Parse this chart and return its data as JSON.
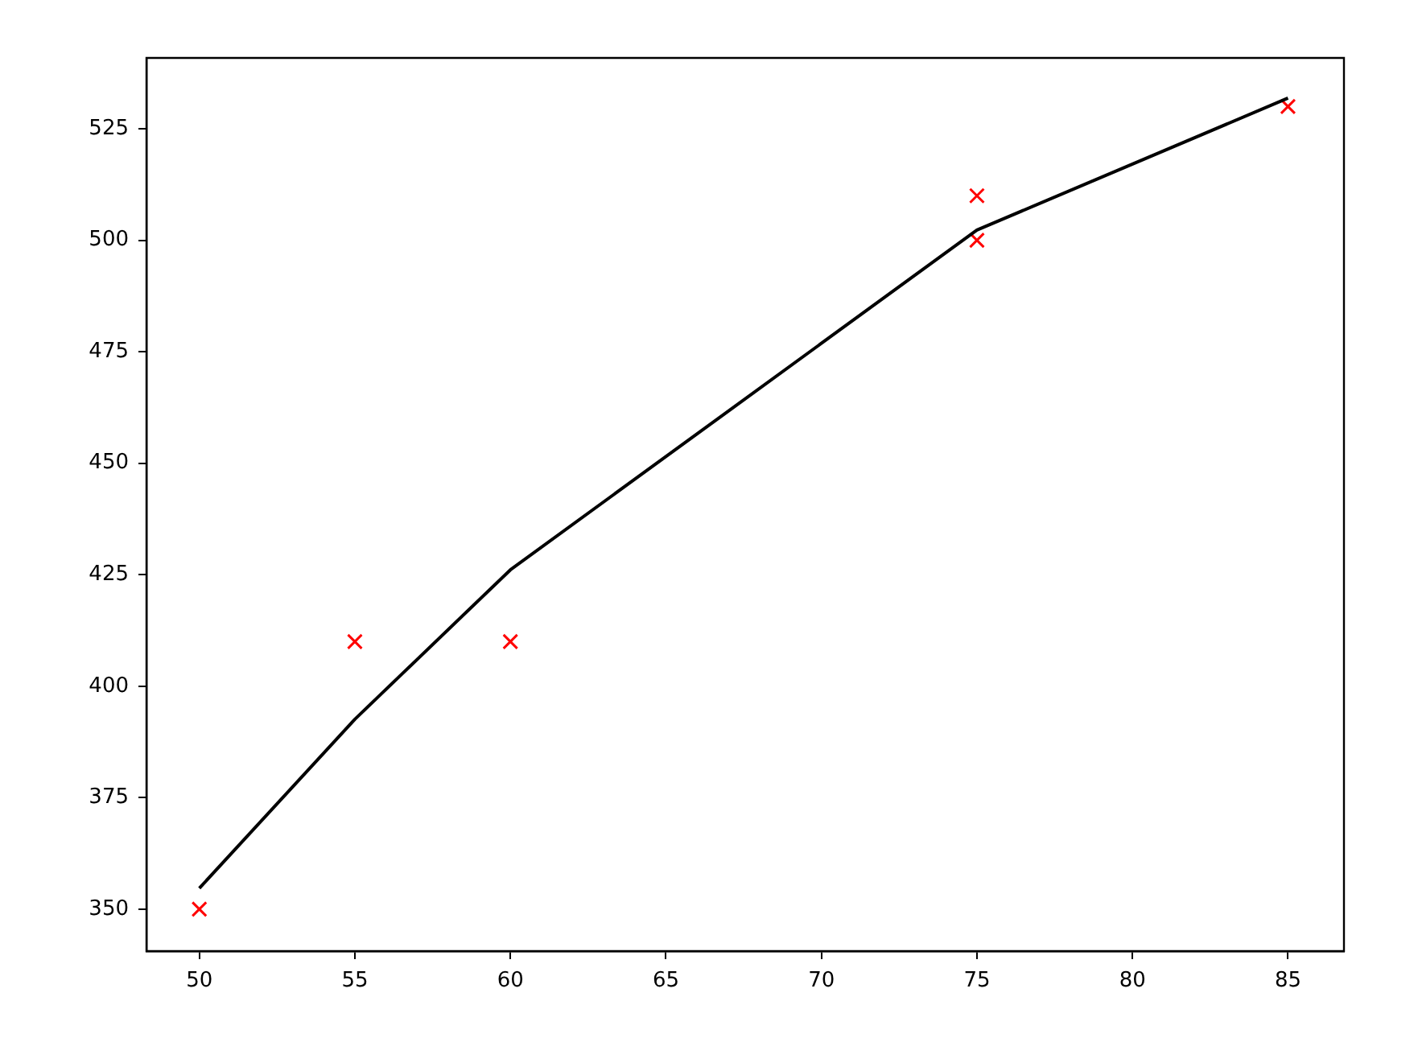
{
  "chart_data": {
    "type": "line",
    "series": [
      {
        "color": "#000000",
        "marker": "none",
        "x": [
          50,
          55,
          60,
          75,
          85
        ],
        "values": [
          354.7,
          392.6,
          426.1,
          502.3,
          531.9
        ]
      },
      {
        "type": "scatter",
        "color": "#ff0000",
        "marker": "cross",
        "x": [
          50,
          55,
          60,
          75,
          75,
          85
        ],
        "values": [
          350,
          410,
          410,
          510,
          500,
          530
        ]
      }
    ],
    "xlim": [
      48.3,
      86.8
    ],
    "xticks": [
      50,
      55,
      60,
      65,
      70,
      75,
      80,
      85
    ],
    "ylim": [
      340.6,
      540.9
    ],
    "yticks": [
      350,
      375,
      400,
      425,
      450,
      475,
      500,
      525
    ],
    "grid": false,
    "legend": false
  }
}
